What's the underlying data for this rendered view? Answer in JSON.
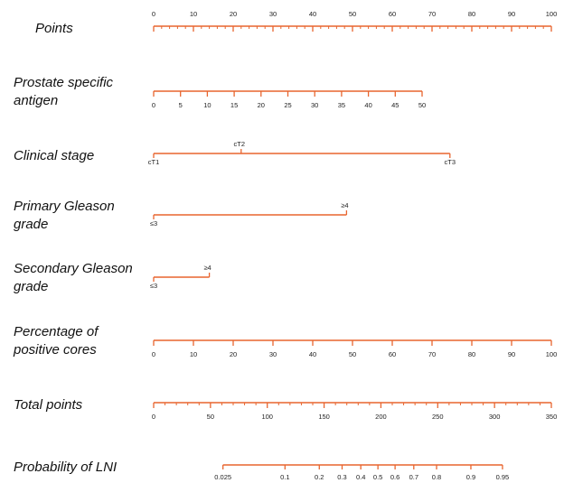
{
  "chart_data": {
    "type": "nomogram",
    "title": "",
    "colors": {
      "axis": "#e8652f",
      "label": "#111111",
      "tick_label": "#222222"
    },
    "rows": [
      {
        "label_lines": [
          "Points"
        ],
        "min": 0,
        "max": 100,
        "major_ticks": [
          0,
          10,
          20,
          30,
          40,
          50,
          60,
          70,
          80,
          90,
          100
        ],
        "tick_labels": [
          "0",
          "10",
          "20",
          "30",
          "40",
          "50",
          "60",
          "70",
          "80",
          "90",
          "100"
        ],
        "minor_step": 2,
        "labels_above": true
      },
      {
        "label_lines": [
          "Prostate specific",
          "antigen"
        ],
        "min": 0,
        "max": 50,
        "major_ticks": [
          0,
          5,
          10,
          15,
          20,
          25,
          30,
          35,
          40,
          45,
          50
        ],
        "tick_labels": [
          "0",
          "5",
          "10",
          "15",
          "20",
          "25",
          "30",
          "35",
          "40",
          "45",
          "50"
        ],
        "points_range": [
          0,
          67.5
        ],
        "labels_above": false
      },
      {
        "label_lines": [
          "Clinical stage"
        ],
        "categories": [
          {
            "label": "cT1",
            "points": 0,
            "side": "below"
          },
          {
            "label": "cT2",
            "points": 22,
            "side": "above"
          },
          {
            "label": "cT3",
            "points": 74.5,
            "side": "below"
          }
        ]
      },
      {
        "label_lines": [
          "Primary Gleason",
          "grade"
        ],
        "categories": [
          {
            "label": "≤3",
            "points": 0,
            "side": "below"
          },
          {
            "label": "≥4",
            "points": 48.5,
            "side": "above"
          }
        ]
      },
      {
        "label_lines": [
          "Secondary Gleason",
          "grade"
        ],
        "categories": [
          {
            "label": "≤3",
            "points": 0,
            "side": "below"
          },
          {
            "label": "≥4",
            "points": 14,
            "side": "above"
          }
        ]
      },
      {
        "label_lines": [
          "Percentage of",
          "positive cores"
        ],
        "min": 0,
        "max": 100,
        "major_ticks": [
          0,
          10,
          20,
          30,
          40,
          50,
          60,
          70,
          80,
          90,
          100
        ],
        "tick_labels": [
          "0",
          "10",
          "20",
          "30",
          "40",
          "50",
          "60",
          "70",
          "80",
          "90",
          "100"
        ],
        "points_range": [
          0,
          100
        ],
        "labels_above": false
      },
      {
        "label_lines": [
          "Total points"
        ],
        "min": 0,
        "max": 350,
        "major_ticks": [
          0,
          50,
          100,
          150,
          200,
          250,
          300,
          350
        ],
        "tick_labels": [
          "0",
          "50",
          "100",
          "150",
          "200",
          "250",
          "300",
          "350"
        ],
        "minor_step": 10,
        "labels_above": false
      },
      {
        "label_lines": [
          "Probability of LNI"
        ],
        "scale": "logit",
        "ticks": [
          0.025,
          0.1,
          0.2,
          0.3,
          0.4,
          0.5,
          0.6,
          0.7,
          0.8,
          0.9,
          0.95
        ],
        "tick_labels": [
          "0.025",
          "0.1",
          "0.2",
          "0.3",
          "0.4",
          "0.5",
          "0.6",
          "0.7",
          "0.8",
          "0.9",
          "0.95"
        ],
        "total_points_range": [
          61,
          307
        ],
        "labels_above": false
      }
    ]
  }
}
